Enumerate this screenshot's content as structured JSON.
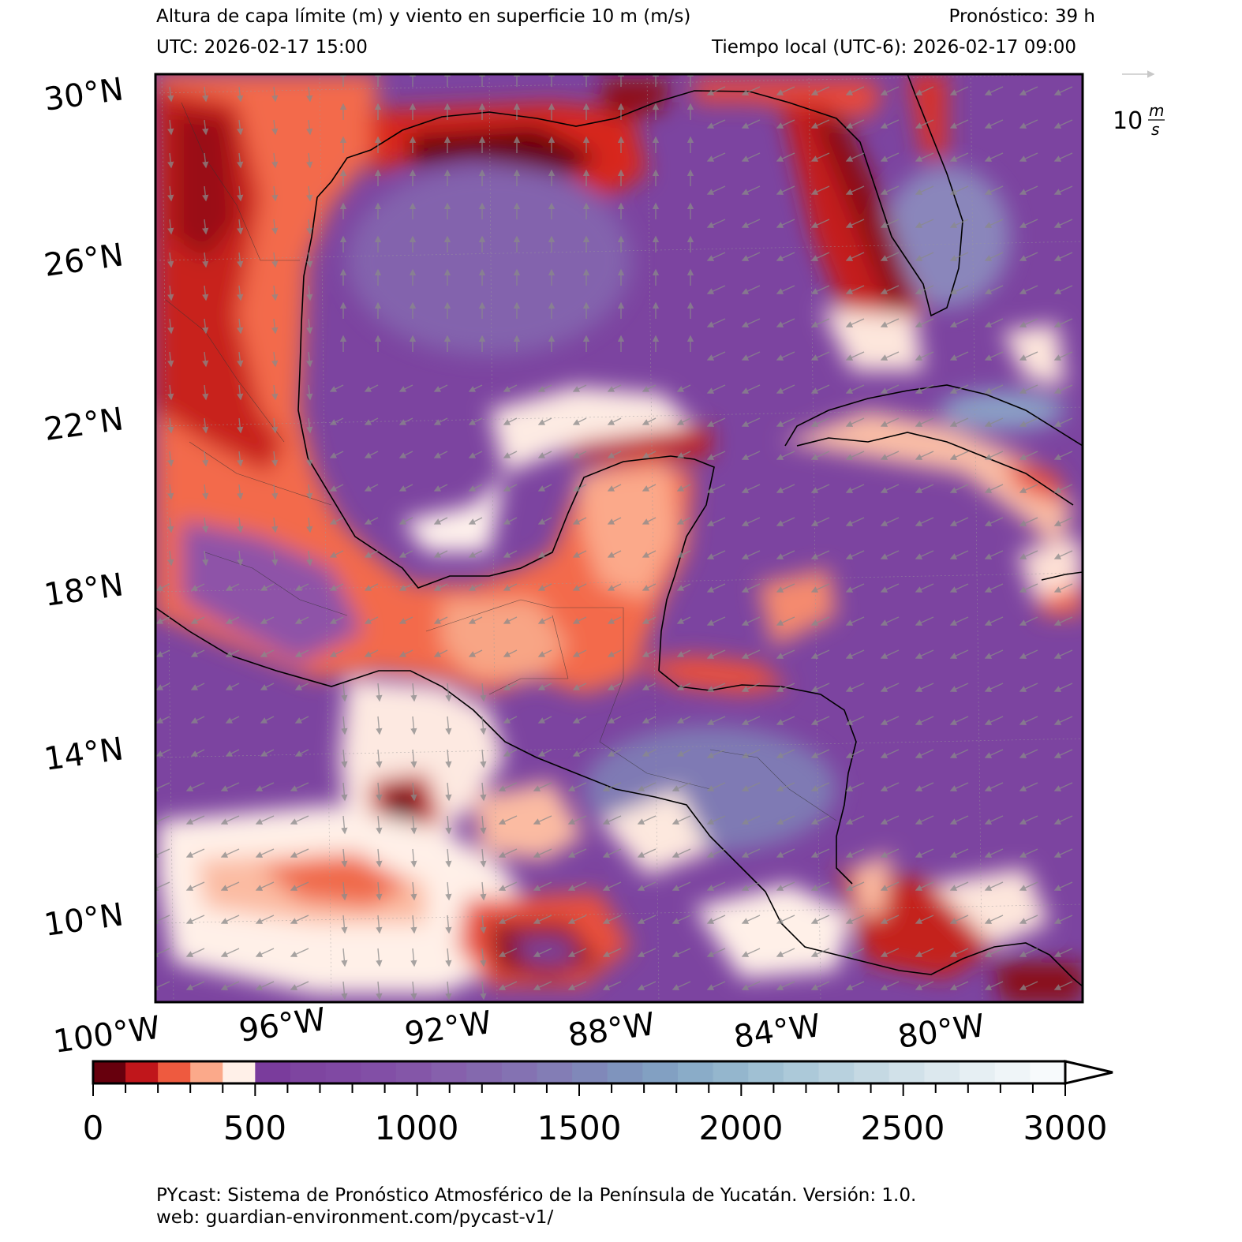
{
  "header": {
    "title": "Altura de capa límite (m) y viento en superficie 10 m (m/s)",
    "forecast": "Pronóstico: 39 h",
    "utc": "UTC:  2026-02-17 15:00",
    "local_time": "Tiempo local (UTC-6): 2026-02-17 09:00"
  },
  "map": {
    "lat_labels": [
      "30°N",
      "26°N",
      "22°N",
      "18°N",
      "14°N",
      "10°N"
    ],
    "lon_labels": [
      "100°W",
      "96°W",
      "92°W",
      "88°W",
      "84°W",
      "80°W"
    ],
    "wind_reference": {
      "value": "10",
      "unit_num": "m",
      "unit_den": "s"
    }
  },
  "colorbar": {
    "tick_labels": [
      "0",
      "500",
      "1000",
      "1500",
      "2000",
      "2500",
      "3000"
    ],
    "range": [
      0,
      3000
    ],
    "extend": "max",
    "colors": [
      "#67000d",
      "#c0161b",
      "#ee5a3f",
      "#fba98a",
      "#fff0e8",
      "#7a3c9c",
      "#7e45a0",
      "#8049a3",
      "#824fa6",
      "#8456a8",
      "#8660ac",
      "#8469ae",
      "#8472b2",
      "#837db5",
      "#8088b9",
      "#7f94bd",
      "#82a0c2",
      "#8aacc8",
      "#94b6cd",
      "#a0c0d3",
      "#acc9d9",
      "#b8d1de",
      "#c5d9e3",
      "#d1e1e9",
      "#dce8ee",
      "#e6eff3",
      "#eff5f8",
      "#f7fafc"
    ]
  },
  "footer": {
    "line1": "PYcast: Sistema de Pronóstico Atmosférico de la Península de Yucatán. Versión: 1.0.",
    "line2": "web: guardian-environment.com/pycast-v1/"
  }
}
